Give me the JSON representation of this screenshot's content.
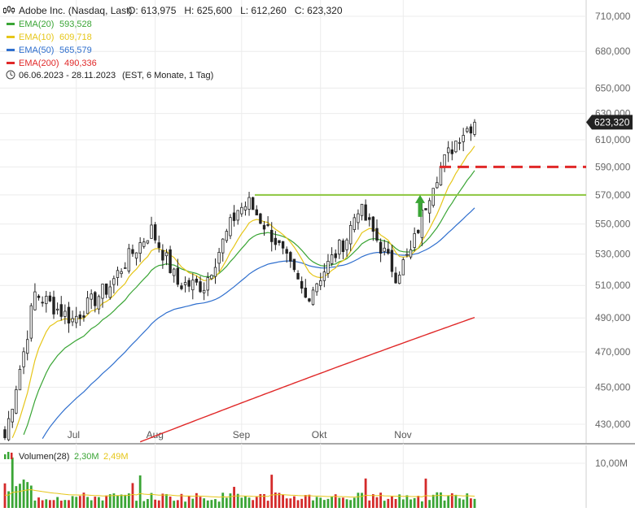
{
  "header": {
    "title": "Adobe Inc. (Nasdaq, Last)",
    "ohlc": "O: 613,975   H: 625,600   L: 612,260   C: 623,320",
    "period": "06.06.2023 - 28.11.2023",
    "period_note": "(EST, 6 Monate, 1 Tag)"
  },
  "legend": [
    {
      "name": "EMA(20)",
      "value": "593,528",
      "color": "#3aa535"
    },
    {
      "name": "EMA(10)",
      "value": "609,718",
      "color": "#e6c619"
    },
    {
      "name": "EMA(50)",
      "value": "565,579",
      "color": "#2f6fce"
    },
    {
      "name": "EMA(200)",
      "value": "490,336",
      "color": "#e02828"
    }
  ],
  "last_price_label": "623,320",
  "volume_legend": {
    "name": "Volumen(28)",
    "value1": "2,30M",
    "value2": "2,49M"
  },
  "volume_axis_label": "10,00M",
  "colors": {
    "up": "#3aa535",
    "down": "#d42a2a",
    "resistance": "#8cc63f",
    "target": "#e02828",
    "arrow": "#3aa535"
  },
  "chart_data": {
    "type": "candlestick",
    "x_range": [
      "2023-06-06",
      "2023-11-28"
    ],
    "x_ticks": [
      "Jul",
      "Aug",
      "Sep",
      "Okt",
      "Nov"
    ],
    "y_ticks": [
      "430,000",
      "450,000",
      "470,000",
      "490,000",
      "510,000",
      "530,000",
      "550,000",
      "570,000",
      "590,000",
      "610,000",
      "630,000",
      "650,000",
      "680,000",
      "710,000"
    ],
    "y_range": [
      420,
      722
    ],
    "y_scale": "log",
    "resistance_level": 570,
    "target_level": 590,
    "ohlc_samples": [
      {
        "date": "2023-06-06",
        "close": 423
      },
      {
        "date": "2023-06-13",
        "close": 470
      },
      {
        "date": "2023-06-16",
        "close": 505
      },
      {
        "date": "2023-06-30",
        "close": 489
      },
      {
        "date": "2023-07-14",
        "close": 510
      },
      {
        "date": "2023-07-20",
        "close": 525
      },
      {
        "date": "2023-07-31",
        "close": 546
      },
      {
        "date": "2023-08-09",
        "close": 511
      },
      {
        "date": "2023-08-18",
        "close": 510
      },
      {
        "date": "2023-08-31",
        "close": 560
      },
      {
        "date": "2023-09-05",
        "close": 564
      },
      {
        "date": "2023-09-14",
        "close": 539
      },
      {
        "date": "2023-09-26",
        "close": 502
      },
      {
        "date": "2023-10-11",
        "close": 541
      },
      {
        "date": "2023-10-16",
        "close": 562
      },
      {
        "date": "2023-10-30",
        "close": 517
      },
      {
        "date": "2023-11-03",
        "close": 531
      },
      {
        "date": "2023-11-13",
        "close": 580
      },
      {
        "date": "2023-11-22",
        "close": 614
      },
      {
        "date": "2023-11-28",
        "close": 623.32
      }
    ],
    "series": [
      {
        "name": "EMA(20)",
        "last": 593.528
      },
      {
        "name": "EMA(10)",
        "last": 609.718
      },
      {
        "name": "EMA(50)",
        "last": 565.579
      },
      {
        "name": "EMA(200)",
        "last": 490.336
      }
    ],
    "volume_series": [
      {
        "name": "Volumen(28)",
        "last": 2.3,
        "average": 2.49
      }
    ]
  }
}
